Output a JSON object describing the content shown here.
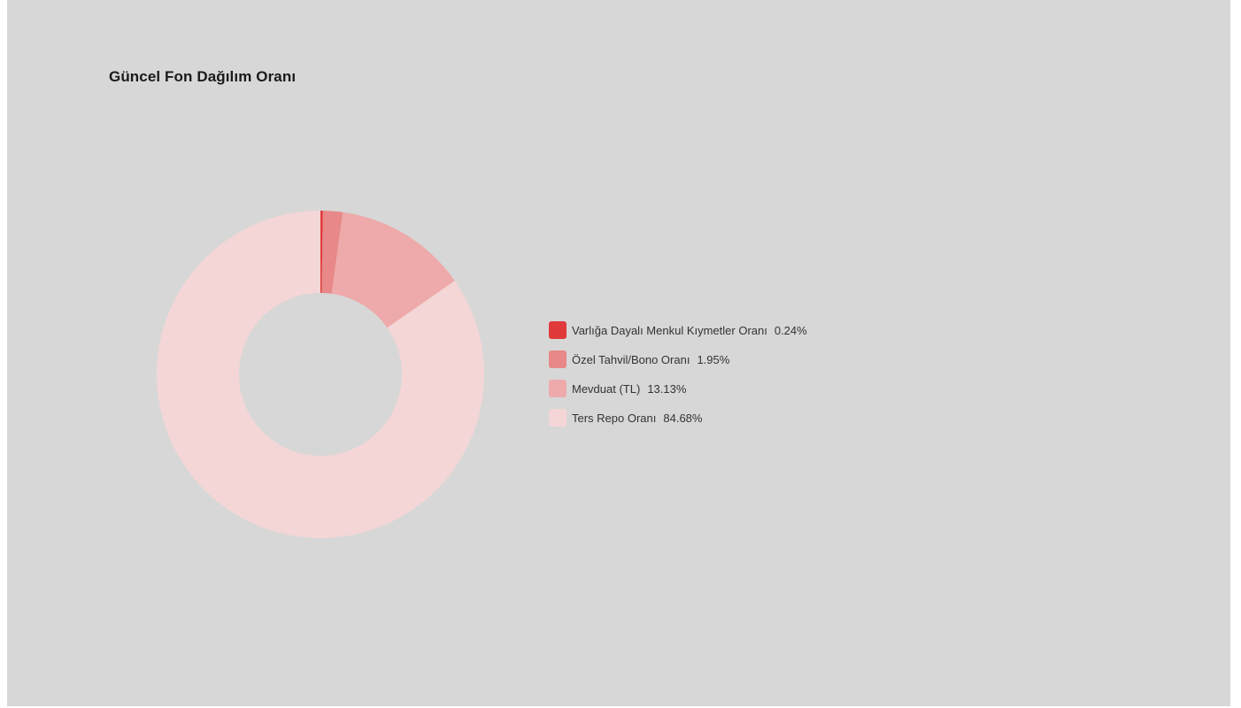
{
  "chart_data": {
    "type": "pie",
    "title": "Güncel Fon Dağılım Oranı",
    "donut": true,
    "legend_position": "right",
    "slices": [
      {
        "label": "Varlığa Dayalı Menkul Kıymetler Oranı",
        "value": 0.24,
        "display": "0.24%",
        "color": "#e03a3a"
      },
      {
        "label": "Özel Tahvil/Bono Oranı",
        "value": 1.95,
        "display": "1.95%",
        "color": "#e88888"
      },
      {
        "label": "Mevduat (TL)",
        "value": 13.13,
        "display": "13.13%",
        "color": "#eeaaaa"
      },
      {
        "label": "Ters Repo Oranı",
        "value": 84.68,
        "display": "84.68%",
        "color": "#f4d6d6"
      }
    ]
  }
}
